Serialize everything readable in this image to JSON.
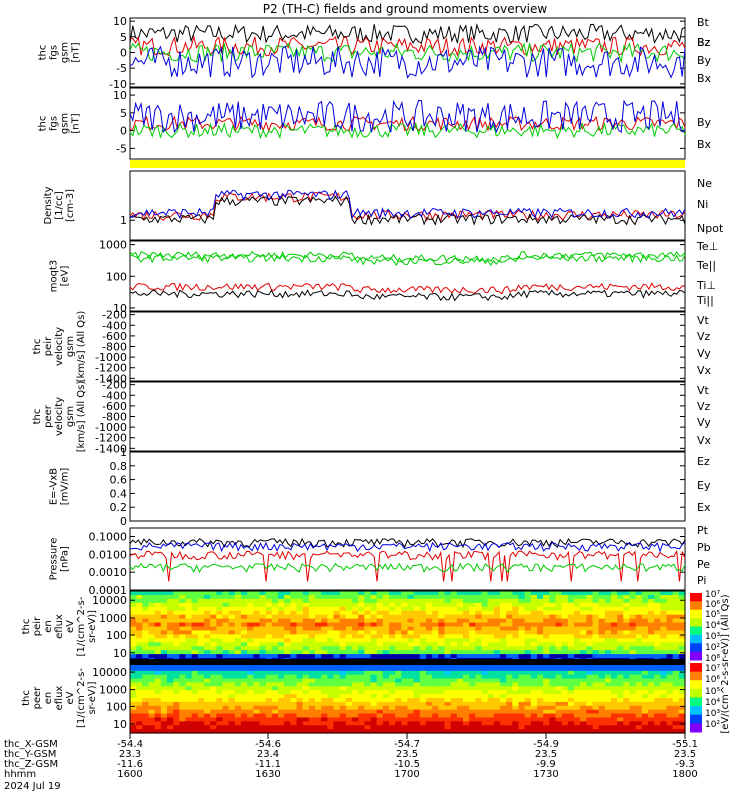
{
  "title": "P2 (TH-C) fields and ground moments overview",
  "colors": {
    "black": "#000000",
    "red": "#e00000",
    "green": "#00cc00",
    "blue": "#0000dd",
    "yellow": "#ffff00"
  },
  "chart_data": [
    {
      "type": "line",
      "id": "fgs",
      "ylabel": [
        "thc",
        "fgs",
        "gsm",
        "[nT]"
      ],
      "ylim": [
        -11,
        11
      ],
      "yticks": [
        10,
        5,
        0,
        -5,
        -10
      ],
      "series": [
        {
          "name": "Bt",
          "color": "black"
        },
        {
          "name": "Bz",
          "color": "red"
        },
        {
          "name": "By",
          "color": "green"
        },
        {
          "name": "Bx",
          "color": "blue"
        }
      ]
    },
    {
      "type": "line",
      "id": "fgs2",
      "ylabel": [
        "thc",
        "fgs",
        "gsm",
        "[nT]"
      ],
      "ylim": [
        -8,
        12
      ],
      "yticks": [
        10,
        5,
        0,
        -5
      ],
      "series": [
        {
          "name": "Bz",
          "color": "red"
        },
        {
          "name": "By",
          "color": "green"
        },
        {
          "name": "Bx",
          "color": "blue"
        }
      ]
    },
    {
      "type": "line",
      "id": "dens",
      "ylabel": [
        "Density",
        "[1/cc]",
        "[cm-3]"
      ],
      "ylim": [
        0.3,
        20
      ],
      "log": true,
      "yticks": [
        1
      ],
      "series": [
        {
          "name": "Ne",
          "color": "red"
        },
        {
          "name": "Ni",
          "color": "black"
        },
        {
          "name": "Npot",
          "color": "blue"
        }
      ]
    },
    {
      "type": "line",
      "id": "temp",
      "ylabel": [
        "moqt3",
        "[eV]"
      ],
      "ylim": [
        8,
        1300
      ],
      "log": true,
      "yticks": [
        1000,
        100,
        10
      ],
      "series": [
        {
          "name": "Te⊥",
          "color": "red"
        },
        {
          "name": "Te||",
          "color": "black"
        },
        {
          "name": "Ti⊥",
          "color": "green"
        },
        {
          "name": "Ti||",
          "color": "green"
        }
      ]
    },
    {
      "type": "line",
      "id": "vi",
      "ylabel": [
        "thc",
        "peir",
        "velocity",
        "gsm",
        "[km/s] (All Qs)"
      ],
      "ylim": [
        -1450,
        -150
      ],
      "yticks": [
        -200,
        -400,
        -600,
        -800,
        -1000,
        -1200,
        -1400
      ],
      "series": [
        {
          "name": "Vt",
          "color": "black"
        },
        {
          "name": "Vz",
          "color": "red"
        },
        {
          "name": "Vy",
          "color": "green"
        },
        {
          "name": "Vx",
          "color": "blue"
        }
      ]
    },
    {
      "type": "line",
      "id": "ve",
      "ylabel": [
        "thc",
        "peer",
        "velocity",
        "gsm",
        "[km/s] (All Qs)"
      ],
      "ylim": [
        -1450,
        -150
      ],
      "yticks": [
        -200,
        -400,
        -600,
        -800,
        -1000,
        -1200,
        -1400
      ],
      "series": [
        {
          "name": "Vt",
          "color": "black"
        },
        {
          "name": "Vz",
          "color": "red"
        },
        {
          "name": "Vy",
          "color": "green"
        },
        {
          "name": "Vx",
          "color": "blue"
        }
      ]
    },
    {
      "type": "line",
      "id": "ef",
      "ylabel": [
        "E=-VxB",
        "[mV/m]"
      ],
      "ylim": [
        0,
        1
      ],
      "yticks": [
        1.0,
        0.8,
        0.6,
        0.4,
        0.2,
        0.0
      ],
      "series": [
        {
          "name": "Ez",
          "color": "red"
        },
        {
          "name": "Ey",
          "color": "green"
        },
        {
          "name": "Ex",
          "color": "blue"
        }
      ]
    },
    {
      "type": "line",
      "id": "pres",
      "ylabel": [
        "Pressure",
        "[nPa]"
      ],
      "ylim": [
        0.0001,
        0.3
      ],
      "log": true,
      "yticks": [
        0.1,
        0.01,
        0.001,
        0.0001
      ],
      "yticklabels": [
        "0.1000",
        "0.0100",
        "0.0010",
        "0.0001"
      ],
      "series": [
        {
          "name": "Pt",
          "color": "black"
        },
        {
          "name": "Pb",
          "color": "red"
        },
        {
          "name": "Pe",
          "color": "green"
        },
        {
          "name": "Pi",
          "color": "blue"
        }
      ]
    },
    {
      "type": "heatmap",
      "id": "ispec",
      "ylabel": [
        "thc",
        "peir",
        "en",
        "eflux",
        "eV",
        "[1/(cm^2-s-",
        "sr-eV)]"
      ],
      "yticks": [
        10000,
        1000,
        100,
        10
      ],
      "log": true
    },
    {
      "type": "heatmap",
      "id": "espec",
      "ylabel": [
        "thc",
        "peer",
        "en",
        "eflux",
        "eV",
        "[1/(cm^2-s-",
        "sr-eV)]"
      ],
      "yticks": [
        10000,
        1000,
        100,
        10
      ],
      "log": true
    }
  ],
  "colorbar": {
    "labels": [
      "10⁷",
      "10⁶",
      "10⁵",
      "10⁴",
      "10³",
      "10²",
      "10⁸",
      "10⁷",
      "10⁶",
      "10⁵",
      "10⁴",
      "10³",
      "10²"
    ],
    "title": "[eV/(cm^2-s-sr-eV)] (All Qs)"
  },
  "xaxis": {
    "rows": [
      {
        "label": "thc_X-GSM",
        "values": [
          "-54.4",
          "-54.6",
          "-54.7",
          "-54.9",
          "-55.1"
        ]
      },
      {
        "label": "thc_Y-GSM",
        "values": [
          "23.3",
          "23.4",
          "23.5",
          "23.5",
          "23.5"
        ]
      },
      {
        "label": "thc_Z-GSM",
        "values": [
          "-11.6",
          "-11.1",
          "-10.5",
          "-9.9",
          "-9.3"
        ]
      },
      {
        "label": "hhmm",
        "values": [
          "1600",
          "1630",
          "1700",
          "1730",
          "1800"
        ]
      }
    ],
    "date": "2024 Jul 19"
  }
}
